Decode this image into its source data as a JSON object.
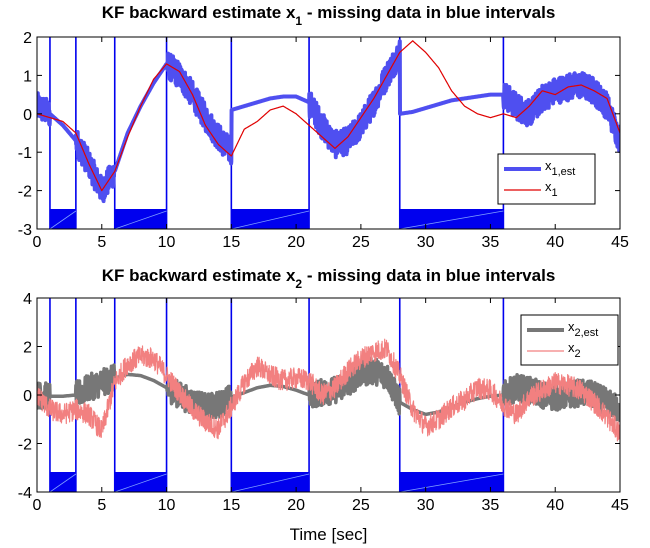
{
  "colors": {
    "interval_blue": "#0000ee",
    "x1_est": "#4f4ff0",
    "x1_true": "#e00000",
    "x2_est": "#777777",
    "x2_true": "#f28080"
  },
  "xlabel": "Time [sec]",
  "missing_intervals": [
    [
      1,
      3
    ],
    [
      6,
      10
    ],
    [
      15,
      21
    ],
    [
      28,
      36
    ]
  ],
  "chart_data": [
    {
      "type": "line",
      "title_main": "KF backward estimate x",
      "title_sub": "1",
      "title_rest": " - missing data in blue intervals",
      "xlim": [
        0,
        45
      ],
      "ylim": [
        -3,
        2
      ],
      "xticks": [
        0,
        5,
        10,
        15,
        20,
        25,
        30,
        35,
        40,
        45
      ],
      "yticks": [
        -3,
        -2,
        -1,
        0,
        1,
        2
      ],
      "legend_position": "lower-right",
      "noise_amplitude": 0.35,
      "series": [
        {
          "name": "x",
          "name_sub": "1,est",
          "role": "estimate",
          "color": "#4f4ff0",
          "points": [
            [
              0,
              0.2
            ],
            [
              1,
              0.0
            ],
            [
              2,
              -0.3
            ],
            [
              3,
              -0.7
            ],
            [
              4,
              -1.3
            ],
            [
              5,
              -2.0
            ],
            [
              6,
              -1.5
            ],
            [
              7,
              -0.5
            ],
            [
              8,
              0.2
            ],
            [
              9,
              0.8
            ],
            [
              10,
              1.3
            ],
            [
              11,
              1.0
            ],
            [
              12,
              0.5
            ],
            [
              13,
              -0.1
            ],
            [
              14,
              -0.6
            ],
            [
              15,
              -1.0
            ],
            [
              15.01,
              0.1
            ],
            [
              16,
              0.2
            ],
            [
              17,
              0.3
            ],
            [
              18,
              0.4
            ],
            [
              19,
              0.45
            ],
            [
              20,
              0.45
            ],
            [
              21,
              0.3
            ],
            [
              22,
              -0.3
            ],
            [
              23,
              -0.8
            ],
            [
              24,
              -0.7
            ],
            [
              25,
              -0.3
            ],
            [
              26,
              0.3
            ],
            [
              27,
              1.0
            ],
            [
              28,
              1.6
            ],
            [
              28.01,
              0.0
            ],
            [
              29,
              0.05
            ],
            [
              30,
              0.15
            ],
            [
              31,
              0.25
            ],
            [
              32,
              0.35
            ],
            [
              33,
              0.4
            ],
            [
              34,
              0.45
            ],
            [
              35,
              0.5
            ],
            [
              36,
              0.5
            ],
            [
              37,
              0.2
            ],
            [
              38,
              0.0
            ],
            [
              39,
              0.4
            ],
            [
              40,
              0.6
            ],
            [
              41,
              0.7
            ],
            [
              42,
              0.75
            ],
            [
              43,
              0.6
            ],
            [
              44,
              0.2
            ],
            [
              45,
              -0.7
            ]
          ],
          "noisy_intervals": [
            [
              0,
              1
            ],
            [
              3,
              6
            ],
            [
              10,
              15
            ],
            [
              21,
              28
            ],
            [
              36,
              45
            ]
          ]
        },
        {
          "name": "x",
          "name_sub": "1",
          "role": "true",
          "color": "#e00000",
          "points": [
            [
              0,
              0.0
            ],
            [
              1,
              -0.1
            ],
            [
              2,
              -0.2
            ],
            [
              3,
              -0.5
            ],
            [
              4,
              -1.3
            ],
            [
              5,
              -2.0
            ],
            [
              6,
              -1.5
            ],
            [
              7,
              -0.6
            ],
            [
              8,
              0.2
            ],
            [
              9,
              0.9
            ],
            [
              10,
              1.3
            ],
            [
              11,
              1.1
            ],
            [
              12,
              0.5
            ],
            [
              13,
              -0.3
            ],
            [
              14,
              -0.8
            ],
            [
              15,
              -1.1
            ],
            [
              16,
              -0.4
            ],
            [
              17,
              -0.2
            ],
            [
              18,
              0.1
            ],
            [
              19,
              0.2
            ],
            [
              20,
              0.0
            ],
            [
              21,
              -0.3
            ],
            [
              22,
              -0.6
            ],
            [
              23,
              -0.9
            ],
            [
              24,
              -0.6
            ],
            [
              25,
              -0.1
            ],
            [
              26,
              0.4
            ],
            [
              27,
              1.0
            ],
            [
              28,
              1.6
            ],
            [
              29,
              1.9
            ],
            [
              30,
              1.6
            ],
            [
              31,
              1.2
            ],
            [
              32,
              0.6
            ],
            [
              33,
              0.2
            ],
            [
              34,
              0.0
            ],
            [
              35,
              -0.1
            ],
            [
              36,
              0.0
            ],
            [
              37,
              -0.1
            ],
            [
              38,
              0.2
            ],
            [
              39,
              0.6
            ],
            [
              40,
              0.5
            ],
            [
              41,
              0.7
            ],
            [
              42,
              0.75
            ],
            [
              43,
              0.6
            ],
            [
              44,
              0.4
            ],
            [
              45,
              -0.5
            ]
          ],
          "noisy_intervals": []
        }
      ]
    },
    {
      "type": "line",
      "title_main": "KF backward estimate x",
      "title_sub": "2",
      "title_rest": " - missing data in blue intervals",
      "xlim": [
        0,
        45
      ],
      "ylim": [
        -4,
        4
      ],
      "xticks": [
        0,
        5,
        10,
        15,
        20,
        25,
        30,
        35,
        40,
        45
      ],
      "yticks": [
        -4,
        -2,
        0,
        2,
        4
      ],
      "legend_position": "top-right",
      "noise_amplitude": 0.55,
      "series": [
        {
          "name": "x",
          "name_sub": "2,est",
          "role": "estimate",
          "color": "#777777",
          "points": [
            [
              0,
              0.0
            ],
            [
              1,
              -0.05
            ],
            [
              2,
              -0.05
            ],
            [
              3,
              0.0
            ],
            [
              4,
              0.3
            ],
            [
              5,
              0.5
            ],
            [
              6,
              0.7
            ],
            [
              7,
              0.85
            ],
            [
              8,
              0.8
            ],
            [
              9,
              0.6
            ],
            [
              10,
              0.3
            ],
            [
              11,
              0.0
            ],
            [
              12,
              -0.3
            ],
            [
              13,
              -0.5
            ],
            [
              14,
              -0.4
            ],
            [
              15,
              -0.1
            ],
            [
              16,
              0.1
            ],
            [
              17,
              0.3
            ],
            [
              18,
              0.4
            ],
            [
              19,
              0.35
            ],
            [
              20,
              0.2
            ],
            [
              21,
              0.0
            ],
            [
              22,
              0.1
            ],
            [
              23,
              0.2
            ],
            [
              24,
              0.5
            ],
            [
              25,
              0.9
            ],
            [
              26,
              1.0
            ],
            [
              27,
              0.8
            ],
            [
              28,
              -0.3
            ],
            [
              29,
              -0.6
            ],
            [
              30,
              -0.8
            ],
            [
              31,
              -0.7
            ],
            [
              32,
              -0.5
            ],
            [
              33,
              -0.3
            ],
            [
              34,
              -0.15
            ],
            [
              35,
              -0.05
            ],
            [
              36,
              0.0
            ],
            [
              37,
              0.3
            ],
            [
              38,
              0.2
            ],
            [
              39,
              0.0
            ],
            [
              40,
              -0.1
            ],
            [
              41,
              0.0
            ],
            [
              42,
              0.1
            ],
            [
              43,
              0.0
            ],
            [
              44,
              -0.3
            ],
            [
              45,
              -0.6
            ]
          ],
          "noisy_intervals": [
            [
              0,
              1
            ],
            [
              3,
              6
            ],
            [
              10,
              15
            ],
            [
              21,
              28
            ],
            [
              36,
              45
            ]
          ]
        },
        {
          "name": "x",
          "name_sub": "2",
          "role": "true",
          "color": "#f28080",
          "points": [
            [
              0,
              0.0
            ],
            [
              1,
              -0.6
            ],
            [
              2,
              -0.8
            ],
            [
              3,
              -0.6
            ],
            [
              4,
              -0.8
            ],
            [
              5,
              -1.5
            ],
            [
              6,
              0.5
            ],
            [
              7,
              1.3
            ],
            [
              8,
              1.6
            ],
            [
              9,
              1.5
            ],
            [
              10,
              0.8
            ],
            [
              11,
              0.1
            ],
            [
              12,
              -0.6
            ],
            [
              13,
              -1.1
            ],
            [
              14,
              -1.4
            ],
            [
              15,
              -0.5
            ],
            [
              16,
              0.5
            ],
            [
              17,
              1.2
            ],
            [
              18,
              0.8
            ],
            [
              19,
              0.6
            ],
            [
              20,
              0.7
            ],
            [
              21,
              0.6
            ],
            [
              22,
              0.0
            ],
            [
              23,
              0.3
            ],
            [
              24,
              1.0
            ],
            [
              25,
              1.5
            ],
            [
              26,
              1.8
            ],
            [
              27,
              1.9
            ],
            [
              28,
              0.8
            ],
            [
              29,
              -0.6
            ],
            [
              30,
              -1.3
            ],
            [
              31,
              -1.0
            ],
            [
              32,
              -0.5
            ],
            [
              33,
              -0.2
            ],
            [
              34,
              0.3
            ],
            [
              35,
              0.2
            ],
            [
              36,
              -0.4
            ],
            [
              37,
              -0.8
            ],
            [
              38,
              -0.1
            ],
            [
              39,
              0.2
            ],
            [
              40,
              0.5
            ],
            [
              41,
              0.4
            ],
            [
              42,
              0.2
            ],
            [
              43,
              -0.3
            ],
            [
              44,
              -0.9
            ],
            [
              45,
              -1.6
            ]
          ],
          "noisy_intervals": [
            [
              0,
              45
            ]
          ]
        }
      ]
    }
  ]
}
